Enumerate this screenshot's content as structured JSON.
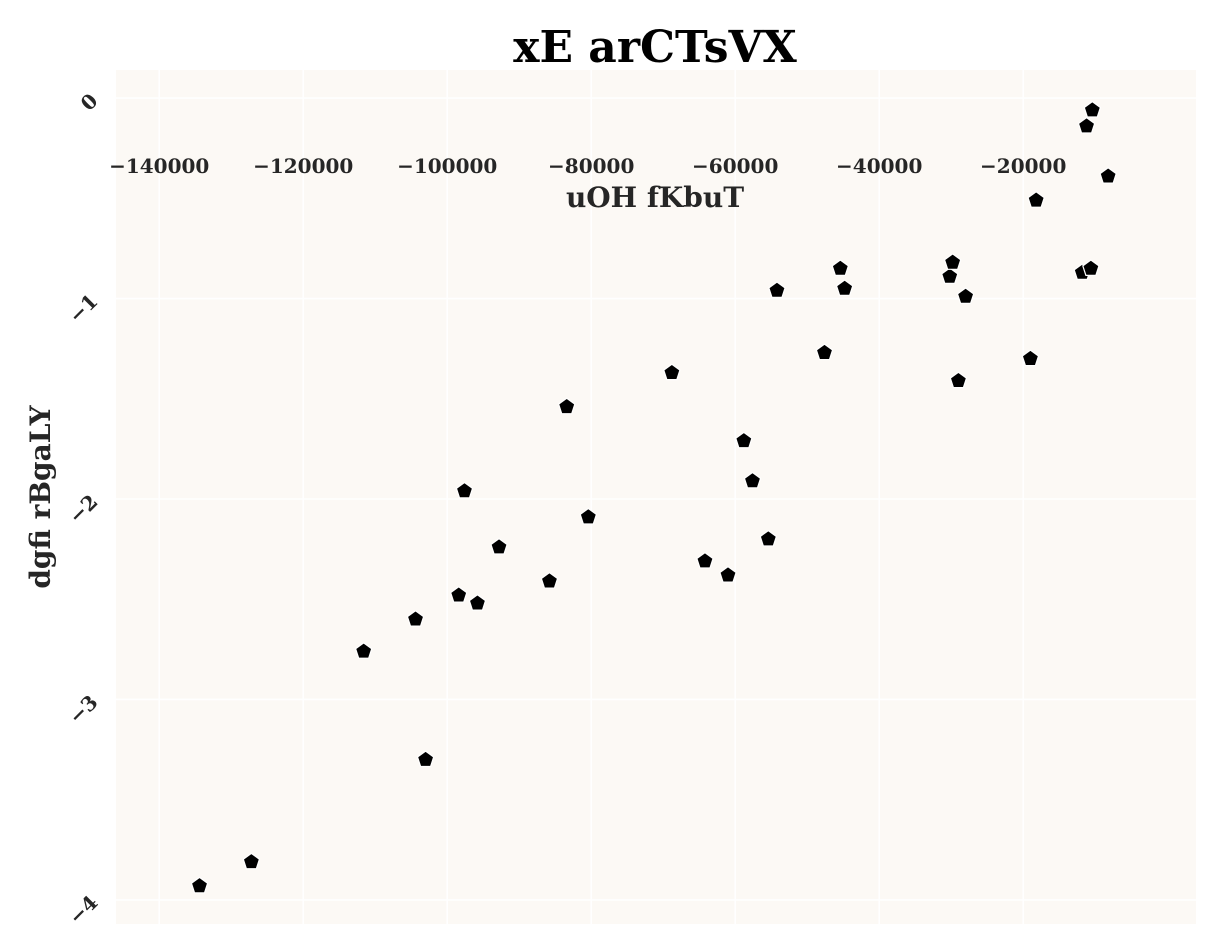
{
  "chart_data": {
    "type": "scatter",
    "title": "xE arCTsVX",
    "xlabel": "uOH fKbuT",
    "ylabel": "dgfi rBgaLY",
    "xlim": [
      -146000,
      4000
    ],
    "ylim": [
      -4.12,
      0.14
    ],
    "x_axis_position": "top",
    "xticks": [
      -140000,
      -120000,
      -100000,
      -80000,
      -60000,
      -40000,
      -20000
    ],
    "xtick_labels": [
      "−140000",
      "−120000",
      "−100000",
      "−80000",
      "−60000",
      "−40000",
      "−20000"
    ],
    "yticks": [
      0,
      -1,
      -2,
      -3,
      -4
    ],
    "ytick_labels": [
      "0",
      "−1",
      "−2",
      "−3",
      "−4"
    ],
    "ytick_rotation_deg": 45,
    "grid": true,
    "background_color": "#fcf9f5",
    "grid_color": "#ffffff",
    "marker": "pentagon",
    "marker_color": "#000000",
    "series": [
      {
        "x": [
          -134400,
          -127200,
          -111600,
          -104400,
          -103000,
          -98400,
          -97600,
          -95800,
          -92800,
          -85800,
          -83400,
          -80400,
          -68800,
          -64200,
          -61000,
          -58800,
          -57600,
          -55400,
          -54200,
          -47600,
          -45400,
          -44800,
          -30200,
          -29800,
          -29000,
          -28000,
          -19000,
          -18200,
          -11800,
          -11200,
          -10400,
          -10600,
          -8200
        ],
        "y": [
          -3.93,
          -3.81,
          -2.76,
          -2.6,
          -3.3,
          -2.48,
          -1.96,
          -2.52,
          -2.24,
          -2.41,
          -1.54,
          -2.09,
          -1.37,
          -2.31,
          -2.38,
          -1.71,
          -1.91,
          -2.2,
          -0.96,
          -1.27,
          -0.85,
          -0.95,
          -0.89,
          -0.82,
          -1.41,
          -0.99,
          -1.3,
          -0.51,
          -0.87,
          -0.14,
          -0.06,
          -0.85,
          -0.39
        ]
      }
    ]
  }
}
